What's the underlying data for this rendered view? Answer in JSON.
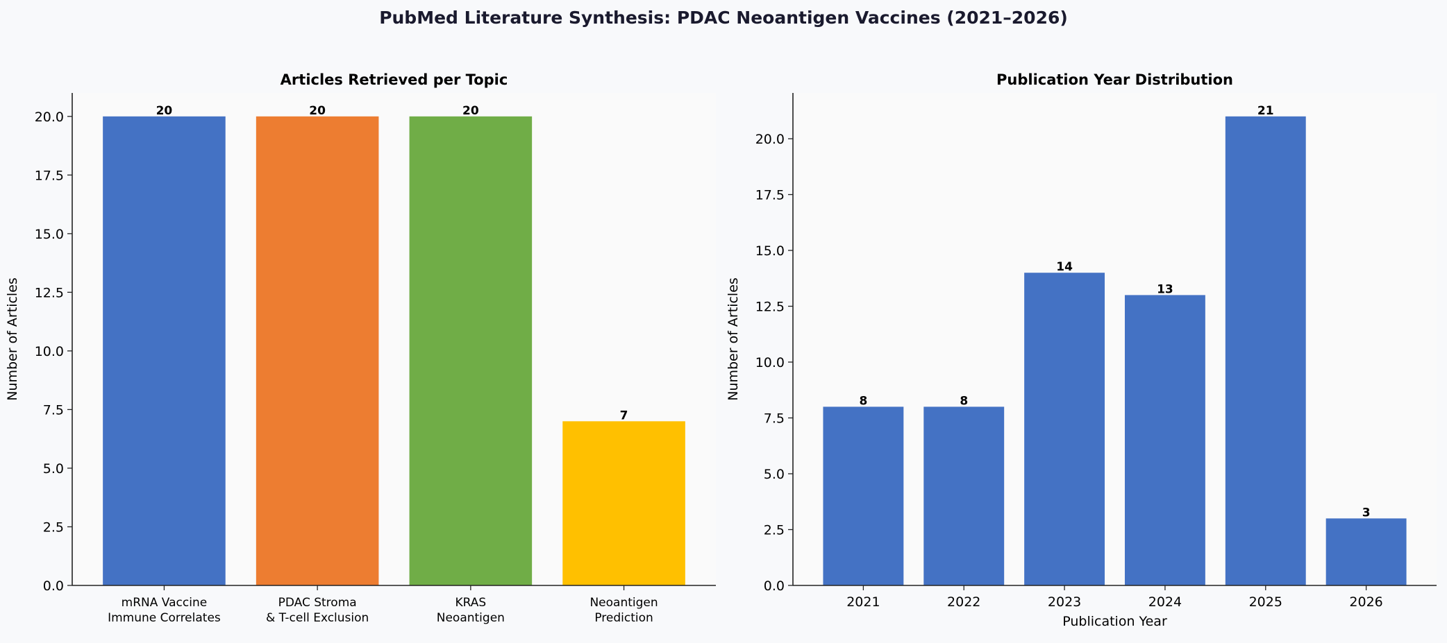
{
  "suptitle": "PubMed Literature Synthesis: PDAC Neoantigen Vaccines (2021–2026)",
  "chart_data": [
    {
      "type": "bar",
      "title": "Articles Retrieved per Topic",
      "xlabel": "",
      "ylabel": "Number of Articles",
      "categories": [
        "mRNA Vaccine\nImmune Correlates",
        "PDAC Stroma\n& T-cell Exclusion",
        "KRAS\nNeoantigen",
        "Neoantigen\nPrediction"
      ],
      "values": [
        20,
        20,
        20,
        7
      ],
      "colors": [
        "#4472C4",
        "#ED7D31",
        "#70AD47",
        "#FFC000"
      ],
      "ylim": [
        0,
        21
      ],
      "yticks": [
        "0.0",
        "2.5",
        "5.0",
        "7.5",
        "10.0",
        "12.5",
        "15.0",
        "17.5",
        "20.0"
      ],
      "data_labels": [
        "20",
        "20",
        "20",
        "7"
      ],
      "grid": false
    },
    {
      "type": "bar",
      "title": "Publication Year Distribution",
      "xlabel": "Publication Year",
      "ylabel": "Number of Articles",
      "categories": [
        "2021",
        "2022",
        "2023",
        "2024",
        "2025",
        "2026"
      ],
      "values": [
        8,
        8,
        14,
        13,
        21,
        3
      ],
      "colors": [
        "#4472C4"
      ],
      "ylim": [
        0,
        22.05
      ],
      "yticks": [
        "0.0",
        "2.5",
        "5.0",
        "7.5",
        "10.0",
        "12.5",
        "15.0",
        "17.5",
        "20.0"
      ],
      "data_labels": [
        "8",
        "8",
        "14",
        "13",
        "21",
        "3"
      ],
      "grid": false
    }
  ]
}
